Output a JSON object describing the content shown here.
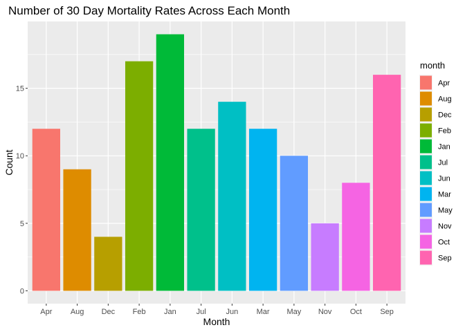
{
  "chart_data": {
    "type": "bar",
    "title": "Number of 30 Day Mortality Rates Across Each Month",
    "xlabel": "Month",
    "ylabel": "Count",
    "categories": [
      "Apr",
      "Aug",
      "Dec",
      "Feb",
      "Jan",
      "Jul",
      "Jun",
      "Mar",
      "May",
      "Nov",
      "Oct",
      "Sep"
    ],
    "values": [
      12,
      9,
      4,
      17,
      19,
      12,
      14,
      12,
      10,
      5,
      8,
      16
    ],
    "colors": [
      "#F8766D",
      "#DE8C00",
      "#B79F00",
      "#7CAE00",
      "#00BA38",
      "#00C08B",
      "#00BFC4",
      "#00B4F0",
      "#619CFF",
      "#C77CFF",
      "#F564E3",
      "#FF64B0"
    ],
    "ylim": [
      -0.95,
      19.95
    ],
    "yticks": [
      0,
      5,
      10,
      15
    ],
    "grid": true,
    "panel_background": "#EBEBEB",
    "legend": {
      "title": "month",
      "placement": "right"
    }
  }
}
